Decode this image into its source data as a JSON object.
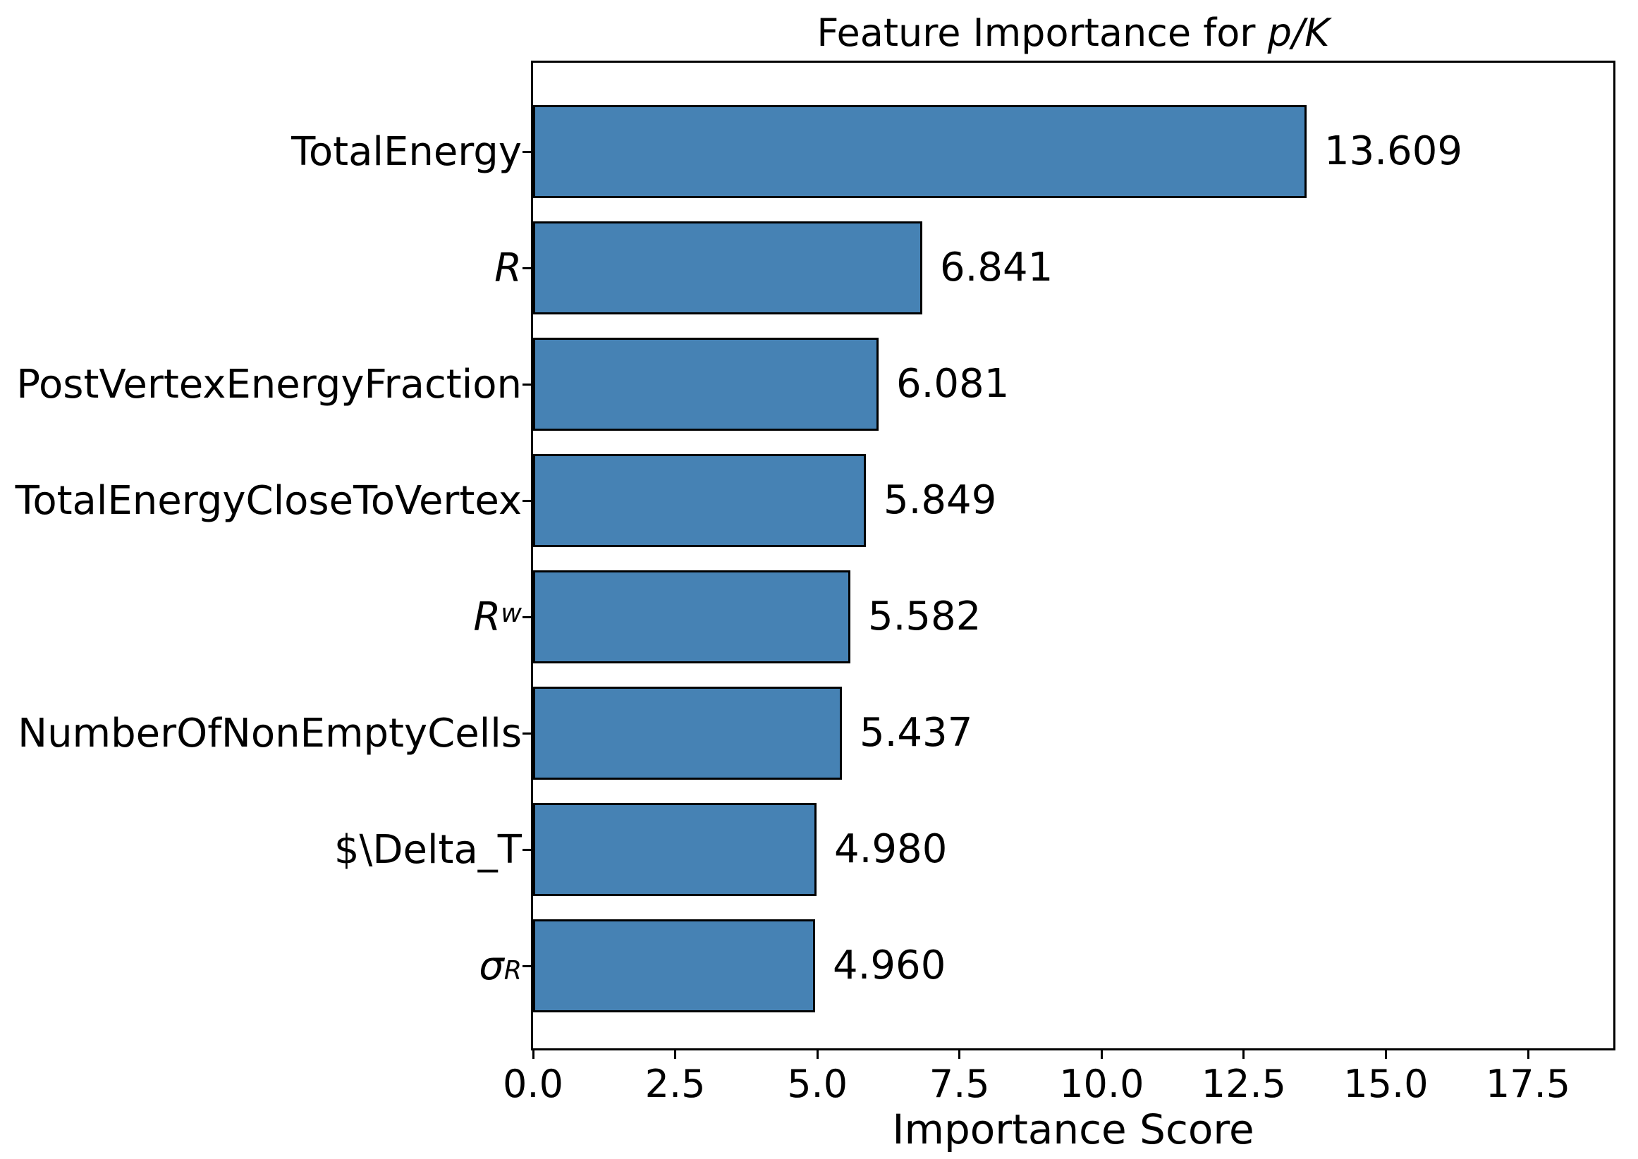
{
  "figure": {
    "title_prefix": "Feature Importance for ",
    "title_math": "p/K",
    "xlabel": "Importance Score"
  },
  "chart_data": {
    "type": "bar",
    "orientation": "horizontal",
    "title": "Feature Importance for p/K",
    "xlabel": "Importance Score",
    "ylabel": "",
    "categories": [
      "TotalEnergy",
      "R",
      "PostVertexEnergyFraction",
      "TotalEnergyCloseToVertex",
      "R^w",
      "NumberOfNonEmptyCells",
      "$\\Delta_T",
      "σ_R"
    ],
    "category_styles": [
      {
        "base": "TotalEnergy",
        "italic": false,
        "sup": "",
        "sub": ""
      },
      {
        "base": "R",
        "italic": true,
        "sup": "",
        "sub": ""
      },
      {
        "base": "PostVertexEnergyFraction",
        "italic": false,
        "sup": "",
        "sub": ""
      },
      {
        "base": "TotalEnergyCloseToVertex",
        "italic": false,
        "sup": "",
        "sub": ""
      },
      {
        "base": "R",
        "italic": true,
        "sup": "w",
        "sub": ""
      },
      {
        "base": "NumberOfNonEmptyCells",
        "italic": false,
        "sup": "",
        "sub": ""
      },
      {
        "base": "$\\Delta_T",
        "italic": false,
        "sup": "",
        "sub": ""
      },
      {
        "base": "σ",
        "italic": true,
        "sup": "",
        "sub": "R"
      }
    ],
    "values": [
      13.609,
      6.841,
      6.081,
      5.849,
      5.582,
      5.437,
      4.98,
      4.96
    ],
    "value_labels": [
      "13.609",
      "6.841",
      "6.081",
      "5.849",
      "5.582",
      "5.437",
      "4.980",
      "4.960"
    ],
    "xlim": [
      0,
      19.0
    ],
    "xticks": [
      "0.0",
      "2.5",
      "5.0",
      "7.5",
      "10.0",
      "12.5",
      "15.0",
      "17.5"
    ],
    "xtick_values": [
      0,
      2.5,
      5,
      7.5,
      10,
      12.5,
      15,
      17.5
    ],
    "grid": false,
    "legend": null,
    "bar_color": "#4682B4",
    "bar_edge_color": "#000000",
    "text_color": "#000000"
  }
}
